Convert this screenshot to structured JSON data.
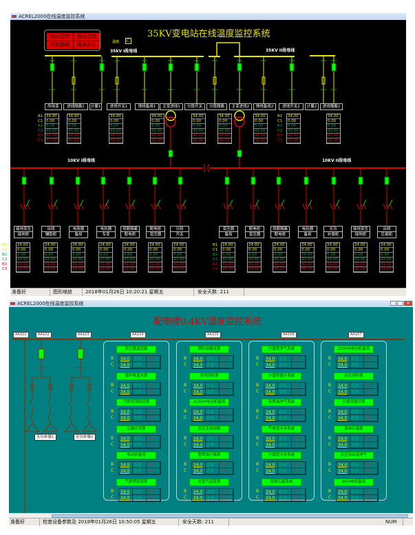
{
  "top_window": {
    "title": "ACREL2000在线温度监控系统",
    "main_title": "35KV变电站在线温度监控系统",
    "buttons": [
      "低压监控",
      "低压监控",
      "历史曲线",
      "报表索引"
    ],
    "temp_label": "温度:",
    "temp_value": "C",
    "bus_35kv_1": "35kV I段母线",
    "bus_35kv_2": "35KV II段母线",
    "bus_10kv_1": "10KV I段母线",
    "bus_10kv_2": "10KV II段母线",
    "cabinets_35kv": [
      "所用变",
      "进线隔离1",
      "计量1",
      "进线开关1",
      "馈线备用1",
      "主变进线1",
      "分段开关",
      "分段隔离",
      "主变进线2",
      "馈线备用2",
      "进线开关2",
      "计量2",
      "进线隔离2"
    ],
    "row_labels": [
      "B1",
      "C1",
      "B2",
      "C2",
      "B3",
      "C3"
    ],
    "tables_35kv": [
      {
        "values": [
          "34.00",
          "0.00",
          "0.00",
          "43.00",
          "41.00",
          "41.00"
        ]
      },
      {
        "values": [
          "34.00",
          "0.00",
          "0.00",
          "43.00",
          "41.00",
          "41.00"
        ]
      },
      {
        "values": [
          "34.00",
          "0.00",
          "0.00",
          "43.00",
          "41.00",
          "41.00"
        ]
      },
      {
        "values": [
          "34.00",
          "0.00",
          "0.00",
          "43.00",
          "41.00",
          "41.00"
        ]
      },
      {
        "values": [
          "34.00",
          "0.00",
          "0.00",
          "43.00",
          "41.00",
          "41.00"
        ]
      },
      {
        "values": [
          "34.00",
          "0.00",
          "0.00",
          "43.00",
          "41.00",
          "41.00"
        ]
      },
      {
        "values": [
          "34.00",
          "0.00",
          "0.00",
          "43.00",
          "41.00",
          "41.00"
        ]
      },
      {
        "values": [
          "34.00",
          "0.00",
          "0.00",
          "43.00",
          "41.00",
          "41.00"
        ]
      },
      {
        "values": [
          "34.00",
          "0.00",
          "0.00",
          "43.00",
          "41.00",
          "41.00"
        ]
      }
    ],
    "feeders_10kv": [
      {
        "label": [
          "接地变压",
          "接地柜"
        ],
        "values": [
          "24.00",
          "0.00",
          "0.00",
          "43.00",
          "41.00",
          "41.00"
        ]
      },
      {
        "label": [
          "出线",
          "辅助柜"
        ],
        "values": [
          "24.00",
          "0.00",
          "0.00",
          "43.00",
          "41.00",
          "41.00"
        ]
      },
      {
        "label": [
          "电容器",
          "备用"
        ],
        "values": [
          "24.00",
          "0.00",
          "0.00",
          "43.00",
          "41.00",
          "41.00"
        ]
      },
      {
        "label": [
          "电抗器",
          "专变"
        ],
        "values": [
          "24.00",
          "0.00",
          "0.00",
          "43.00",
          "41.00",
          "41.00"
        ]
      },
      {
        "label": [
          "母联隔离",
          "配电柜"
        ],
        "values": [
          "24.00",
          "0.00",
          "0.00",
          "43.00",
          "41.00",
          "41.00"
        ]
      },
      {
        "label": [
          "配电柜",
          "变压器"
        ],
        "values": [
          "24.00",
          "0.00",
          "0.00",
          "43.00",
          "41.00",
          "41.00"
        ]
      },
      {
        "label": [
          "分段",
          "开关"
        ],
        "values": [
          "24.00",
          "0.00",
          "0.00",
          "43.00",
          "41.00",
          "41.00"
        ]
      },
      {
        "label": [
          "变压器",
          "备用"
        ],
        "values": [
          "24.00",
          "0.00",
          "0.00",
          "43.00",
          "41.00",
          "41.00"
        ]
      },
      {
        "label": [
          "配电柜",
          "变压器"
        ],
        "values": [
          "24.00",
          "0.00",
          "0.00",
          "43.00",
          "41.00",
          "41.00"
        ]
      },
      {
        "label": [
          "母联隔离",
          "配电柜"
        ],
        "values": [
          "24.00",
          "0.00",
          "0.00",
          "43.00",
          "41.00",
          "41.00"
        ]
      },
      {
        "label": [
          "电抗器",
          "备用"
        ],
        "values": [
          "24.00",
          "0.00",
          "24.00",
          "43.00",
          "41.00",
          "41.00"
        ]
      },
      {
        "label": [
          "无功",
          "补偿柜"
        ],
        "values": [
          "24.00",
          "0.00",
          "0.00",
          "43.00",
          "41.00",
          "41.00"
        ]
      },
      {
        "label": [
          "接地变压",
          "接地柜"
        ],
        "values": [
          "24.00",
          "0.00",
          "0.00",
          "43.00",
          "41.00",
          "41.00"
        ]
      },
      {
        "label": [
          "出线",
          "压缩机"
        ],
        "values": [
          "24.00",
          "0.00",
          "0.00",
          "43.00",
          "41.00",
          "41.00"
        ]
      }
    ],
    "status": {
      "ready": "准备好",
      "zoom": "图形缩放",
      "datetime": "2018年01月26日  10:20:21  星期五",
      "safe_days": "安全天数: 211"
    }
  },
  "bottom_window": {
    "title": "ACREL2000在线温度监控系统",
    "main_title": "配电楼0.4KV温度监控系统",
    "cabinets": [
      "AA101",
      "AA102",
      "AA103",
      "AA104",
      "AA105",
      "AA106",
      "AA107"
    ],
    "compensators": [
      "无功补偿1",
      "无功补偿2"
    ],
    "phase_labels": [
      "B",
      "C"
    ],
    "cards": [
      {
        "items": [
          {
            "name": "变压器温控箱",
            "values": [
              "34.0",
              "0.0",
              "0.0",
              "34.0",
              "0.0",
              "0.0"
            ]
          },
          {
            "name": "循环降温水泵",
            "values": [
              "34.0",
              "0.0",
              "0.0",
              "34.0",
              "0.0",
              "0.0"
            ]
          },
          {
            "name": "汽提塔顶回流泵",
            "values": [
              "34.0",
              "0.0",
              "0.0",
              "34.0",
              "0.0",
              "0.0"
            ]
          },
          {
            "name": "注碱化剂泵",
            "values": [
              "34.0",
              "0.0",
              "0.0",
              "34.0",
              "0.0",
              "0.0"
            ]
          },
          {
            "name": "电动机备用",
            "values": [
              "34.0",
              "0.0",
              "0.0",
              "34.0",
              "0.0",
              "0.0"
            ]
          },
          {
            "name": "汽提塔回流泵",
            "values": [
              "34.0",
              "0.0",
              "0.0",
              "34.0",
              "0.0",
              "0.0"
            ]
          }
        ]
      },
      {
        "items": [
          {
            "name": "燃料油输送泵",
            "values": [
              "34.0",
              "0.0",
              "0.0",
              "34.0",
              "0.0",
              "0.0"
            ]
          },
          {
            "name": "溶剂回收泵",
            "values": [
              "34.0",
              "0.0",
              "0.0",
              "34.0",
              "0.0",
              "0.0"
            ]
          },
          {
            "name": "315KW电动机备用",
            "values": [
              "34.0",
              "0.0",
              "0.0",
              "34.0",
              "0.0",
              "0.0"
            ]
          },
          {
            "name": "反应生成油泵",
            "values": [
              "34.0",
              "0.0",
              "0.0",
              "34.0",
              "0.0",
              "0.0"
            ]
          },
          {
            "name": "重质油分离泵",
            "values": [
              "34.0",
              "0.0",
              "0.0",
              "34.0",
              "0.0",
              "0.0"
            ]
          },
          {
            "name": "含氢气返流泵",
            "values": [
              "34.0",
              "0.0",
              "0.0",
              "34.0",
              "0.0",
              "0.0"
            ]
          }
        ]
      },
      {
        "items": [
          {
            "name": "分馏塔净气系统",
            "values": [
              "34.0",
              "0.0",
              "0.0",
              "34.0",
              "0.0",
              "0.0"
            ]
          },
          {
            "name": "分馏塔循环系统",
            "values": [
              "34.0",
              "0.0",
              "0.0",
              "34.0",
              "0.0",
              "0.0"
            ]
          },
          {
            "name": "轻质油净气系统",
            "values": [
              "34.0",
              "0.0",
              "0.0",
              "34.0",
              "0.0",
              "0.0"
            ]
          },
          {
            "name": "气体提冷水系统",
            "values": [
              "34.0",
              "0.0",
              "0.0",
              "34.0",
              "0.0",
              "0.0"
            ]
          },
          {
            "name": "分馏塔冷水系统",
            "values": [
              "34.0",
              "0.0",
              "0.0",
              "34.0",
              "0.0",
              "0.0"
            ]
          },
          {
            "name": "液体石蜡系统",
            "values": [
              "34.0",
              "0.0",
              "0.0",
              "34.0",
              "0.0",
              "0.0"
            ]
          }
        ]
      },
      {
        "items": [
          {
            "name": "220KW电动机备用",
            "values": [
              "34.0",
              "0.0",
              "0.0",
              "34.0",
              "0.0",
              "0.0"
            ]
          },
          {
            "name": "反应进料泵",
            "values": [
              "34.0",
              "0.0",
              "0.0",
              "34.0",
              "0.0",
              "0.0"
            ]
          },
          {
            "name": "分馏塔循环泵",
            "values": [
              "34.0",
              "0.0",
              "0.0",
              "34.0",
              "0.0",
              "0.0"
            ]
          },
          {
            "name": "液体石蜡泵",
            "values": [
              "34.0",
              "0.0",
              "0.0",
              "34.0",
              "0.0",
              "0.0"
            ]
          },
          {
            "name": "反应液出液净气",
            "values": [
              "34.0",
              "0.0",
              "0.0",
              "34.0",
              "0.0",
              "0.0"
            ]
          },
          {
            "name": "8KW电机备用",
            "values": [
              "34.0",
              "0.0",
              "0.0",
              "34.0",
              "0.0",
              "0.0"
            ]
          }
        ]
      }
    ],
    "status": {
      "ready": "准备好",
      "check": "检查设备参数及 2018年01月26日 10:50:05 星期五",
      "safe_days": "安全天数: 211",
      "num": "NUM"
    }
  },
  "colors": {
    "top_bg": "#000000",
    "bottom_bg": "#008080",
    "bus_35kv": "#e8e800",
    "bus_10kv": "#e00000",
    "switch_green": "#00ff00",
    "bus_04kv": "#7a3a10"
  }
}
